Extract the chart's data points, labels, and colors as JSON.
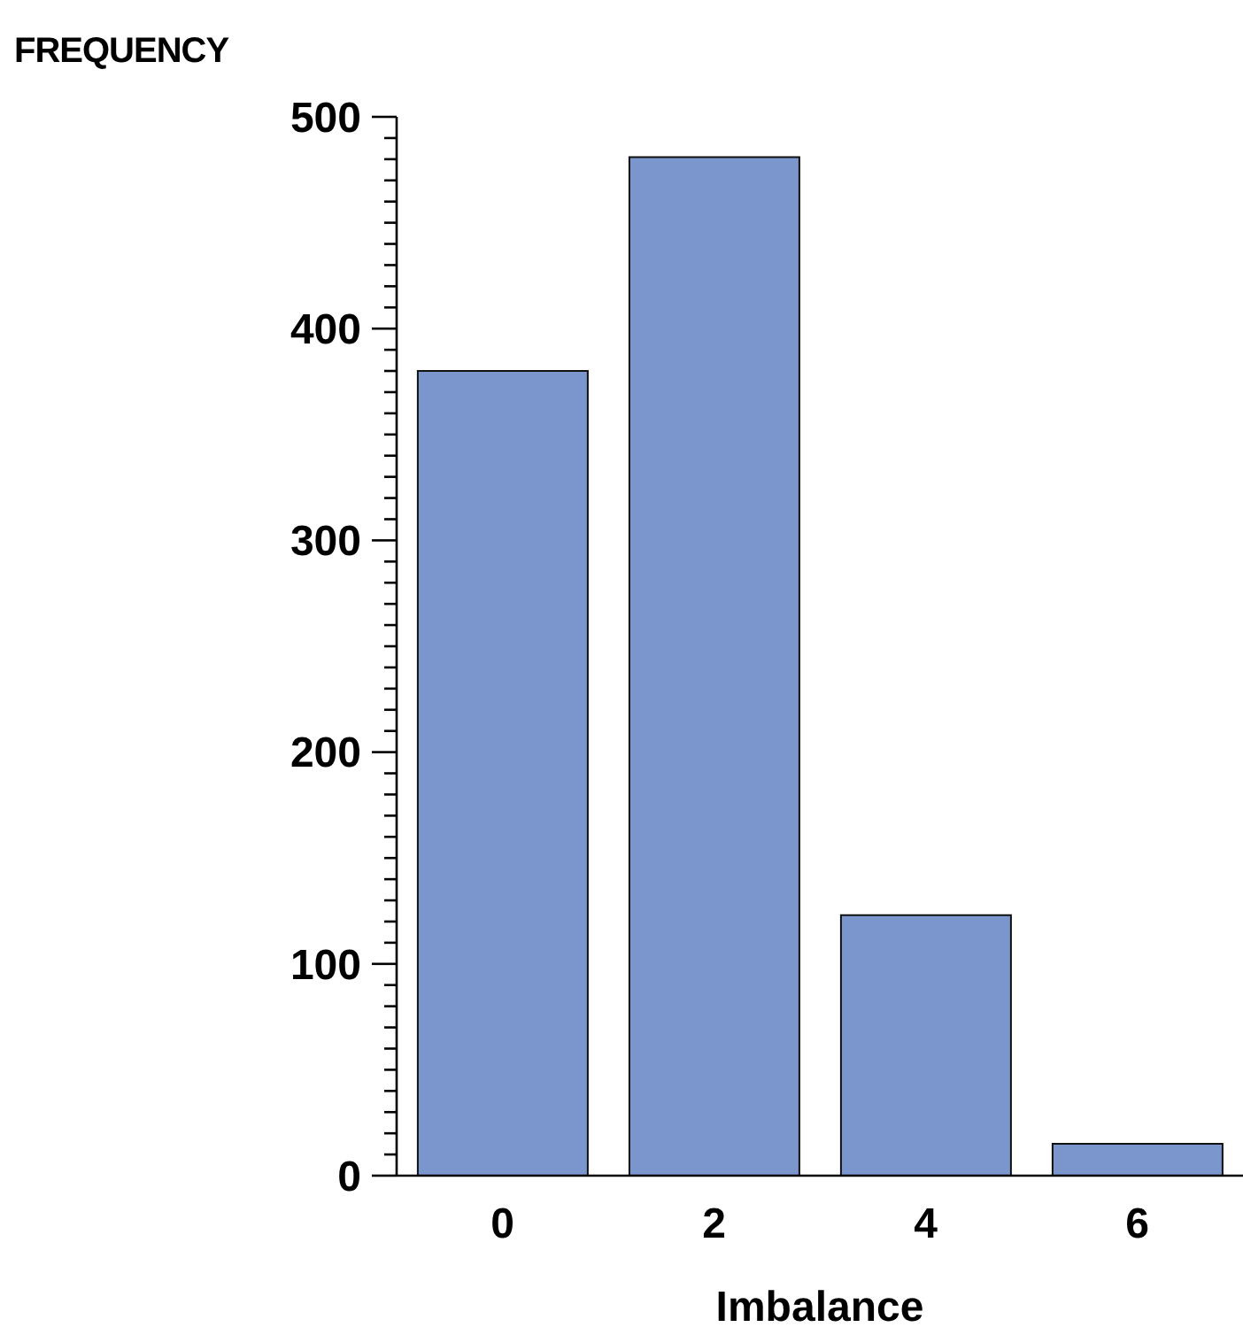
{
  "chart_data": {
    "type": "bar",
    "ylabel": "FREQUENCY",
    "xlabel": "Imbalance",
    "categories": [
      "0",
      "2",
      "4",
      "6"
    ],
    "values": [
      380,
      481,
      123,
      15
    ],
    "color": "#7b96cc",
    "ylim": [
      0,
      500
    ],
    "yticks": [
      0,
      {
        "value": 10,
        "label": null
      },
      {
        "value": 20,
        "label": null
      },
      {
        "value": 30,
        "label": null
      },
      {
        "value": 40,
        "label": null
      },
      {
        "value": 50,
        "label": null
      },
      {
        "value": 60,
        "label": null
      },
      {
        "value": 70,
        "label": null
      },
      {
        "value": 80,
        "label": null
      },
      {
        "value": 90,
        "label": null
      },
      100,
      {
        "value": 110,
        "label": null
      },
      {
        "value": 120,
        "label": null
      },
      {
        "value": 130,
        "label": null
      },
      {
        "value": 140,
        "label": null
      },
      {
        "value": 150,
        "label": null
      },
      {
        "value": 160,
        "label": null
      },
      {
        "value": 170,
        "label": null
      },
      {
        "value": 180,
        "label": null
      },
      {
        "value": 190,
        "label": null
      },
      200,
      {
        "value": 210,
        "label": null
      },
      {
        "value": 220,
        "label": null
      },
      {
        "value": 230,
        "label": null
      },
      {
        "value": 240,
        "label": null
      },
      {
        "value": 250,
        "label": null
      },
      {
        "value": 260,
        "label": null
      },
      {
        "value": 270,
        "label": null
      },
      {
        "value": 280,
        "label": null
      },
      {
        "value": 290,
        "label": null
      },
      300,
      {
        "value": 310,
        "label": null
      },
      {
        "value": 320,
        "label": null
      },
      {
        "value": 330,
        "label": null
      },
      {
        "value": 340,
        "label": null
      },
      {
        "value": 350,
        "label": null
      },
      {
        "value": 360,
        "label": null
      },
      {
        "value": 370,
        "label": null
      },
      {
        "value": 380,
        "label": null
      },
      {
        "value": 390,
        "label": null
      },
      400,
      {
        "value": 410,
        "label": null
      },
      {
        "value": 420,
        "label": null
      },
      {
        "value": 430,
        "label": null
      },
      {
        "value": 440,
        "label": null
      },
      {
        "value": 450,
        "label": null
      },
      {
        "value": 460,
        "label": null
      },
      {
        "value": 470,
        "label": null
      },
      {
        "value": 480,
        "label": null
      },
      {
        "value": 490,
        "label": null
      },
      500
    ],
    "grid": false,
    "legend": false
  }
}
